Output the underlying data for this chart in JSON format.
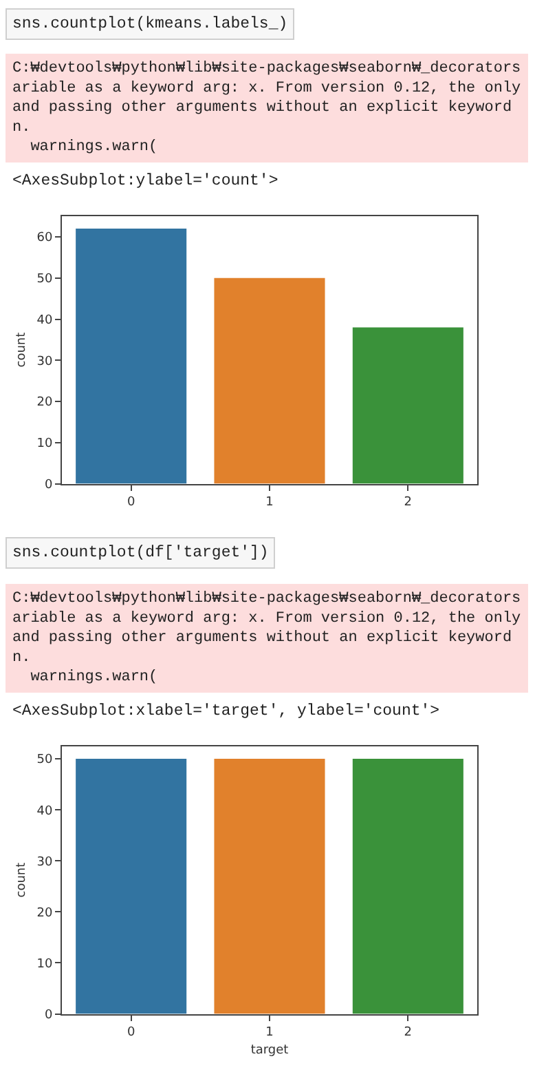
{
  "chart_data": [
    {
      "type": "bar",
      "categories": [
        "0",
        "1",
        "2"
      ],
      "values": [
        62,
        50,
        38
      ],
      "colors": [
        "#3274a1",
        "#e1812c",
        "#3a923a"
      ],
      "ylabel": "count",
      "ylim": [
        0,
        65.1
      ],
      "yticks": [
        0,
        10,
        20,
        30,
        40,
        50,
        60
      ],
      "annotations": [
        "sns.countplot(kmeans.labels_)",
        "C:₩devtools₩python₩lib₩site-packages₩seaborn₩_decorators\nariable as a keyword arg: x. From version 0.12, the only\nand passing other arguments without an explicit keyword\nn.\n  warnings.warn(",
        "<AxesSubplot:ylabel='count'>"
      ]
    },
    {
      "type": "bar",
      "categories": [
        "0",
        "1",
        "2"
      ],
      "values": [
        50,
        50,
        50
      ],
      "colors": [
        "#3274a1",
        "#e1812c",
        "#3a923a"
      ],
      "xlabel": "target",
      "ylabel": "count",
      "ylim": [
        0,
        52.5
      ],
      "yticks": [
        0,
        10,
        20,
        30,
        40,
        50
      ],
      "annotations": [
        "sns.countplot(df['target'])",
        "C:₩devtools₩python₩lib₩site-packages₩seaborn₩_decorators\nariable as a keyword arg: x. From version 0.12, the only\nand passing other arguments without an explicit keyword\nn.\n  warnings.warn(",
        "<AxesSubplot:xlabel='target', ylabel='count'>"
      ]
    }
  ]
}
